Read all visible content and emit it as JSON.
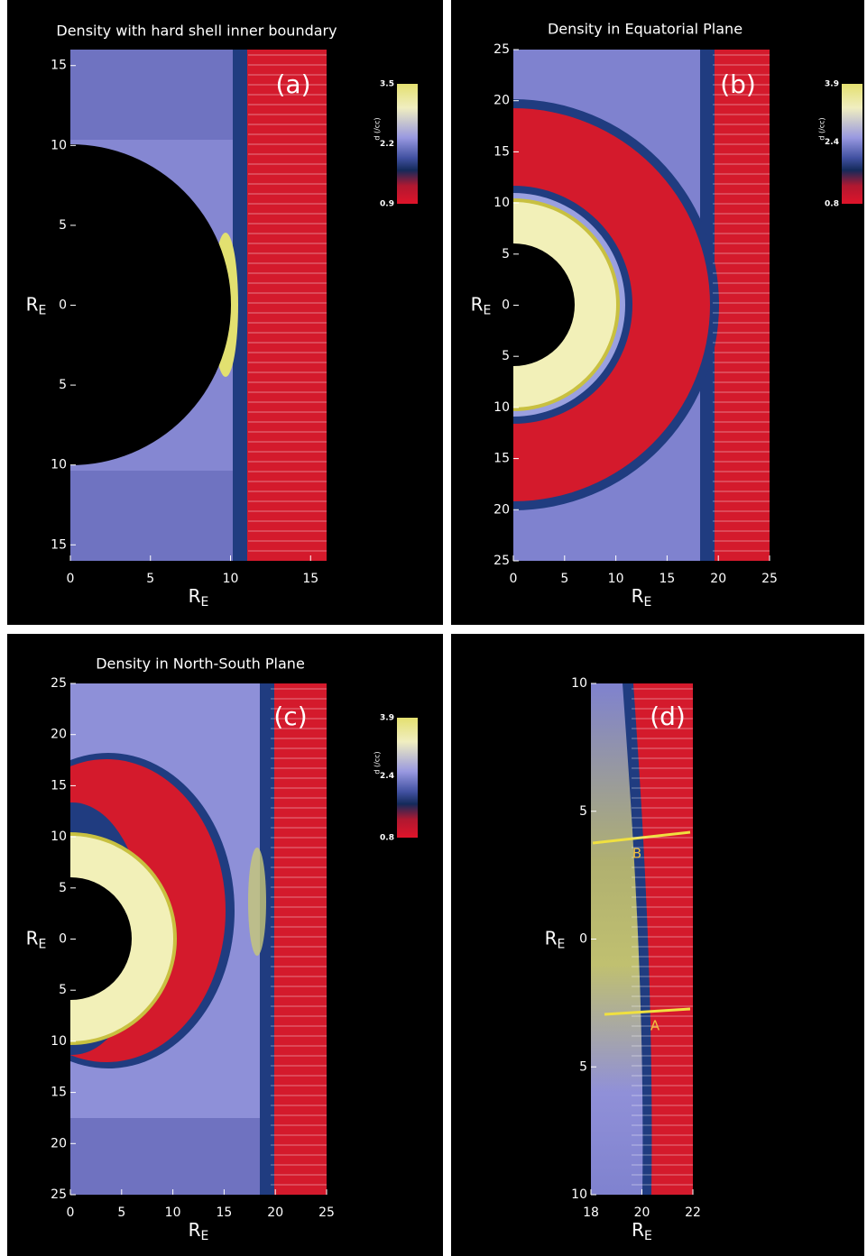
{
  "chart_data": [
    {
      "type": "heatmap",
      "title": "Density with hard shell inner boundary",
      "panel_label": "(a)",
      "xlabel": {
        "text": "R",
        "sub": "E"
      },
      "ylabel": {
        "text": "R",
        "sub": "E"
      },
      "xlim": [
        0,
        16
      ],
      "ylim": [
        -16,
        16
      ],
      "xticks": [
        0,
        5,
        10,
        15
      ],
      "yticks": [
        15,
        10,
        5,
        0,
        {
          "value": -5,
          "label": "5"
        },
        {
          "value": -10,
          "label": "10"
        },
        {
          "value": -15,
          "label": "15"
        }
      ],
      "colorbar": {
        "label": "d (/cc)",
        "clim": [
          0.9,
          3.5
        ],
        "ticks": [
          3.5,
          2.2,
          0.9
        ]
      }
    },
    {
      "type": "heatmap",
      "title": "Density in Equatorial Plane",
      "panel_label": "(b)",
      "xlabel": {
        "text": "R",
        "sub": "E"
      },
      "ylabel": {
        "text": "R",
        "sub": "E"
      },
      "xlim": [
        0,
        25
      ],
      "ylim": [
        -25,
        25
      ],
      "xticks": [
        0,
        5,
        10,
        15,
        20,
        25
      ],
      "yticks": [
        25,
        20,
        15,
        10,
        5,
        0,
        {
          "value": -5,
          "label": "5"
        },
        {
          "value": -10,
          "label": "10"
        },
        {
          "value": -15,
          "label": "15"
        },
        {
          "value": -20,
          "label": "20"
        },
        {
          "value": -25,
          "label": "25"
        }
      ],
      "colorbar": {
        "label": "d (/cc)",
        "clim": [
          0.8,
          3.9
        ],
        "ticks": [
          3.9,
          2.4,
          0.8
        ]
      }
    },
    {
      "type": "heatmap",
      "title": "Density in North-South Plane",
      "panel_label": "(c)",
      "xlabel": {
        "text": "R",
        "sub": "E"
      },
      "ylabel": {
        "text": "R",
        "sub": "E"
      },
      "xlim": [
        0,
        25
      ],
      "ylim": [
        -25,
        25
      ],
      "xticks": [
        0,
        5,
        10,
        15,
        20,
        25
      ],
      "yticks": [
        25,
        20,
        15,
        10,
        5,
        0,
        {
          "value": -5,
          "label": "5"
        },
        {
          "value": -10,
          "label": "10"
        },
        {
          "value": -15,
          "label": "15"
        },
        {
          "value": -20,
          "label": "20"
        },
        {
          "value": -25,
          "label": "25"
        }
      ],
      "colorbar": {
        "label": "d (/cc)",
        "clim": [
          0.8,
          3.9
        ],
        "ticks": [
          3.9,
          2.4,
          0.8
        ]
      }
    },
    {
      "type": "heatmap",
      "panel_label": "(d)",
      "xlabel": {
        "text": "R",
        "sub": "E"
      },
      "ylabel": {
        "text": "R",
        "sub": "E"
      },
      "xlim": [
        18,
        22
      ],
      "ylim": [
        -10,
        10
      ],
      "xticks": [
        18,
        20,
        22
      ],
      "yticks": [
        10,
        5,
        0,
        {
          "value": -5,
          "label": "5"
        },
        {
          "value": -10,
          "label": "10"
        }
      ],
      "annotations": [
        {
          "text": "B"
        },
        {
          "text": "A"
        }
      ]
    }
  ]
}
